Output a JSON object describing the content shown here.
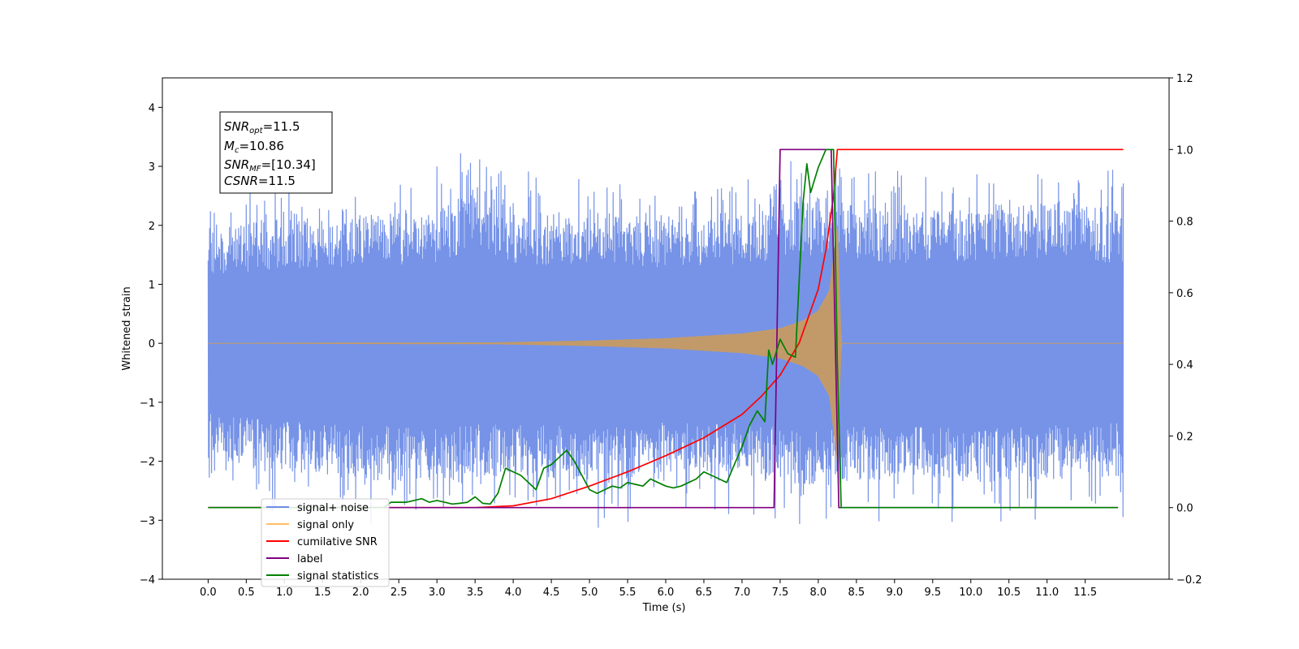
{
  "chart_data": {
    "type": "line",
    "xlabel": "Time (s)",
    "ylabel": "Whitened strain",
    "xlim": [
      -0.6,
      12.6
    ],
    "ylim": [
      -4,
      4.5
    ],
    "y2lim": [
      -0.2,
      1.2
    ],
    "xticks": [
      0.0,
      0.5,
      1.0,
      1.5,
      2.0,
      2.5,
      3.0,
      3.5,
      4.0,
      4.5,
      5.0,
      5.5,
      6.0,
      6.5,
      7.0,
      7.5,
      8.0,
      8.5,
      9.0,
      9.5,
      10.0,
      10.5,
      11.0,
      11.5
    ],
    "xtick_labels": [
      "0.0",
      "0.5",
      "1.0",
      "1.5",
      "2.0",
      "2.5",
      "3.0",
      "3.5",
      "4.0",
      "4.5",
      "5.0",
      "5.5",
      "6.0",
      "6.5",
      "7.0",
      "7.5",
      "8.0",
      "8.5",
      "9.0",
      "9.5",
      "10.0",
      "10.5",
      "11.0",
      "11.5"
    ],
    "yticks": [
      -4,
      -3,
      -2,
      -1,
      0,
      1,
      2,
      3,
      4
    ],
    "ytick_labels": [
      "−4",
      "−3",
      "−2",
      "−1",
      "0",
      "1",
      "2",
      "3",
      "4"
    ],
    "y2ticks": [
      -0.2,
      0.0,
      0.2,
      0.4,
      0.6,
      0.8,
      1.0,
      1.2
    ],
    "y2tick_labels": [
      "−0.2",
      "0.0",
      "0.2",
      "0.4",
      "0.6",
      "0.8",
      "1.0",
      "1.2"
    ],
    "grid": false,
    "legend_position": "lower-left",
    "annotation": {
      "lines": [
        {
          "main": "SNR",
          "sub": "opt",
          "rest": "=11.5"
        },
        {
          "main": "M",
          "sub": "c",
          "rest": "=10.86"
        },
        {
          "main": "SNR",
          "sub": "MF",
          "rest": "=[10.34]"
        },
        {
          "main": "CSNR",
          "sub": "",
          "rest": "=11.5"
        }
      ]
    },
    "series": [
      {
        "name": "signal+ noise",
        "axis": "left",
        "color": "#6f8de6",
        "x_range": [
          0.0,
          12.0
        ],
        "envelope_upper": [
          [
            0.0,
            2.6
          ],
          [
            1.0,
            2.8
          ],
          [
            2.0,
            2.9
          ],
          [
            3.0,
            3.0
          ],
          [
            3.5,
            3.6
          ],
          [
            4.0,
            3.0
          ],
          [
            5.0,
            2.9
          ],
          [
            6.0,
            2.8
          ],
          [
            7.0,
            3.0
          ],
          [
            8.0,
            3.3
          ],
          [
            9.0,
            3.0
          ],
          [
            10.0,
            3.1
          ],
          [
            11.0,
            3.2
          ],
          [
            12.0,
            3.0
          ]
        ],
        "envelope_lower": [
          [
            0.0,
            -2.6
          ],
          [
            1.0,
            -2.9
          ],
          [
            2.0,
            -3.1
          ],
          [
            3.0,
            -3.1
          ],
          [
            4.0,
            -3.0
          ],
          [
            5.0,
            -3.2
          ],
          [
            6.0,
            -2.9
          ],
          [
            7.0,
            -3.0
          ],
          [
            8.0,
            -3.3
          ],
          [
            9.0,
            -3.0
          ],
          [
            10.0,
            -3.2
          ],
          [
            11.0,
            -3.1
          ],
          [
            12.0,
            -3.0
          ]
        ]
      },
      {
        "name": "signal only",
        "axis": "left",
        "color": "#c29a6a",
        "envelope": [
          [
            0.0,
            0.0
          ],
          [
            3.8,
            0.01
          ],
          [
            5.0,
            0.04
          ],
          [
            6.0,
            0.08
          ],
          [
            7.0,
            0.16
          ],
          [
            7.5,
            0.25
          ],
          [
            7.8,
            0.38
          ],
          [
            8.0,
            0.55
          ],
          [
            8.15,
            0.9
          ],
          [
            8.25,
            2.0
          ],
          [
            8.3,
            0.0
          ],
          [
            12.0,
            0.0
          ]
        ]
      },
      {
        "name": "cumilative SNR",
        "axis": "right",
        "color": "#ff0000",
        "points": [
          [
            0.0,
            0.0
          ],
          [
            3.5,
            0.0
          ],
          [
            4.0,
            0.005
          ],
          [
            4.5,
            0.025
          ],
          [
            5.0,
            0.06
          ],
          [
            5.5,
            0.1
          ],
          [
            6.0,
            0.145
          ],
          [
            6.5,
            0.195
          ],
          [
            7.0,
            0.26
          ],
          [
            7.25,
            0.31
          ],
          [
            7.5,
            0.37
          ],
          [
            7.75,
            0.46
          ],
          [
            8.0,
            0.61
          ],
          [
            8.1,
            0.72
          ],
          [
            8.2,
            0.87
          ],
          [
            8.25,
            1.0
          ],
          [
            12.0,
            1.0
          ]
        ]
      },
      {
        "name": "label",
        "axis": "right",
        "color": "#800080",
        "points": [
          [
            0.0,
            0.0
          ],
          [
            7.42,
            0.0
          ],
          [
            7.5,
            1.0
          ],
          [
            8.17,
            1.0
          ],
          [
            8.27,
            0.0
          ],
          [
            11.93,
            0.0
          ]
        ]
      },
      {
        "name": "signal statistics",
        "axis": "right",
        "color": "#008000",
        "points": [
          [
            0.0,
            0.0
          ],
          [
            2.3,
            0.0
          ],
          [
            2.4,
            0.015
          ],
          [
            2.6,
            0.015
          ],
          [
            2.7,
            0.02
          ],
          [
            2.8,
            0.025
          ],
          [
            2.9,
            0.015
          ],
          [
            3.0,
            0.02
          ],
          [
            3.1,
            0.015
          ],
          [
            3.2,
            0.01
          ],
          [
            3.3,
            0.012
          ],
          [
            3.4,
            0.015
          ],
          [
            3.5,
            0.03
          ],
          [
            3.6,
            0.012
          ],
          [
            3.7,
            0.01
          ],
          [
            3.8,
            0.04
          ],
          [
            3.9,
            0.11
          ],
          [
            4.0,
            0.1
          ],
          [
            4.1,
            0.09
          ],
          [
            4.2,
            0.07
          ],
          [
            4.3,
            0.05
          ],
          [
            4.4,
            0.11
          ],
          [
            4.5,
            0.12
          ],
          [
            4.6,
            0.14
          ],
          [
            4.7,
            0.16
          ],
          [
            4.8,
            0.13
          ],
          [
            4.9,
            0.09
          ],
          [
            5.0,
            0.05
          ],
          [
            5.1,
            0.04
          ],
          [
            5.2,
            0.05
          ],
          [
            5.3,
            0.06
          ],
          [
            5.4,
            0.055
          ],
          [
            5.5,
            0.07
          ],
          [
            5.6,
            0.065
          ],
          [
            5.7,
            0.06
          ],
          [
            5.8,
            0.08
          ],
          [
            5.9,
            0.07
          ],
          [
            6.0,
            0.06
          ],
          [
            6.1,
            0.055
          ],
          [
            6.2,
            0.06
          ],
          [
            6.3,
            0.07
          ],
          [
            6.4,
            0.08
          ],
          [
            6.5,
            0.1
          ],
          [
            6.6,
            0.09
          ],
          [
            6.7,
            0.08
          ],
          [
            6.8,
            0.07
          ],
          [
            6.9,
            0.12
          ],
          [
            7.0,
            0.17
          ],
          [
            7.1,
            0.23
          ],
          [
            7.2,
            0.27
          ],
          [
            7.3,
            0.24
          ],
          [
            7.35,
            0.44
          ],
          [
            7.4,
            0.4
          ],
          [
            7.5,
            0.47
          ],
          [
            7.6,
            0.43
          ],
          [
            7.7,
            0.42
          ],
          [
            7.8,
            0.85
          ],
          [
            7.85,
            0.96
          ],
          [
            7.9,
            0.88
          ],
          [
            8.0,
            0.95
          ],
          [
            8.1,
            1.0
          ],
          [
            8.2,
            1.0
          ],
          [
            8.25,
            0.4
          ],
          [
            8.3,
            0.0
          ],
          [
            11.93,
            0.0
          ]
        ]
      }
    ]
  }
}
